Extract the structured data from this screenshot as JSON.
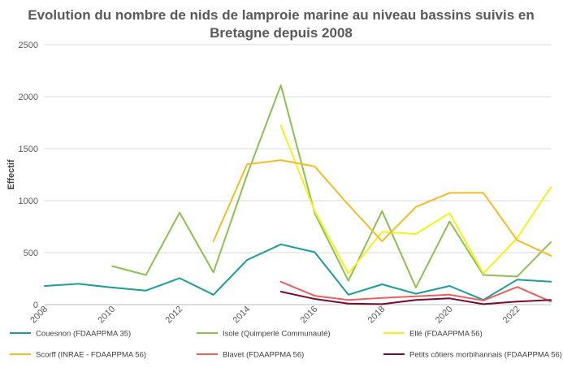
{
  "chart_data": {
    "type": "line",
    "title_lines": [
      "Evolution du nombre de nids de lamproie marine au niveau bassins suivis en",
      "Bretagne depuis 2008"
    ],
    "xlabel": "",
    "ylabel": "Effectif",
    "xlim": [
      2008,
      2023
    ],
    "ylim": [
      0,
      2500
    ],
    "x_ticks": [
      "2008",
      "2010",
      "2012",
      "2014",
      "2016",
      "2018",
      "2020",
      "2022"
    ],
    "y_ticks": [
      "0",
      "500",
      "1000",
      "1500",
      "2000",
      "2500"
    ],
    "grid": "horizontal",
    "legend_position": "bottom",
    "x": [
      2008,
      2009,
      2010,
      2011,
      2012,
      2013,
      2014,
      2015,
      2016,
      2017,
      2018,
      2019,
      2020,
      2021,
      2022,
      2023
    ],
    "series": [
      {
        "name": "Couesnon (FDAAPPMA 35)",
        "color": "#1a9e96",
        "values": [
          180,
          200,
          165,
          135,
          255,
          95,
          430,
          580,
          505,
          95,
          195,
          105,
          180,
          45,
          240,
          220
        ]
      },
      {
        "name": "Isole (Quimperlé Communauté)",
        "color": "#8cc152",
        "values": [
          null,
          null,
          370,
          285,
          885,
          310,
          1250,
          2110,
          880,
          230,
          900,
          165,
          800,
          285,
          270,
          600
        ]
      },
      {
        "name": "Ellé (FDAAPPMA 56)",
        "color": "#f2f21a",
        "values": [
          null,
          null,
          null,
          null,
          null,
          null,
          null,
          1720,
          900,
          300,
          700,
          680,
          880,
          300,
          640,
          1130
        ]
      },
      {
        "name": "Scorff (INRAE - FDAAPPMA 56)",
        "color": "#f4bc25",
        "values": [
          null,
          null,
          null,
          null,
          null,
          610,
          1350,
          1390,
          1330,
          960,
          610,
          940,
          1075,
          1075,
          620,
          470
        ]
      },
      {
        "name": "Blavet (FDAAPPMA 56)",
        "color": "#ec5f5f",
        "values": [
          null,
          null,
          null,
          null,
          null,
          null,
          null,
          220,
          85,
          45,
          65,
          80,
          95,
          40,
          170,
          30
        ]
      },
      {
        "name": "Petits côtiers morbihannais (FDAAPPMA 56)",
        "color": "#7a0b33",
        "values": [
          null,
          null,
          null,
          null,
          null,
          null,
          null,
          125,
          55,
          10,
          5,
          45,
          60,
          5,
          30,
          45
        ]
      }
    ]
  }
}
